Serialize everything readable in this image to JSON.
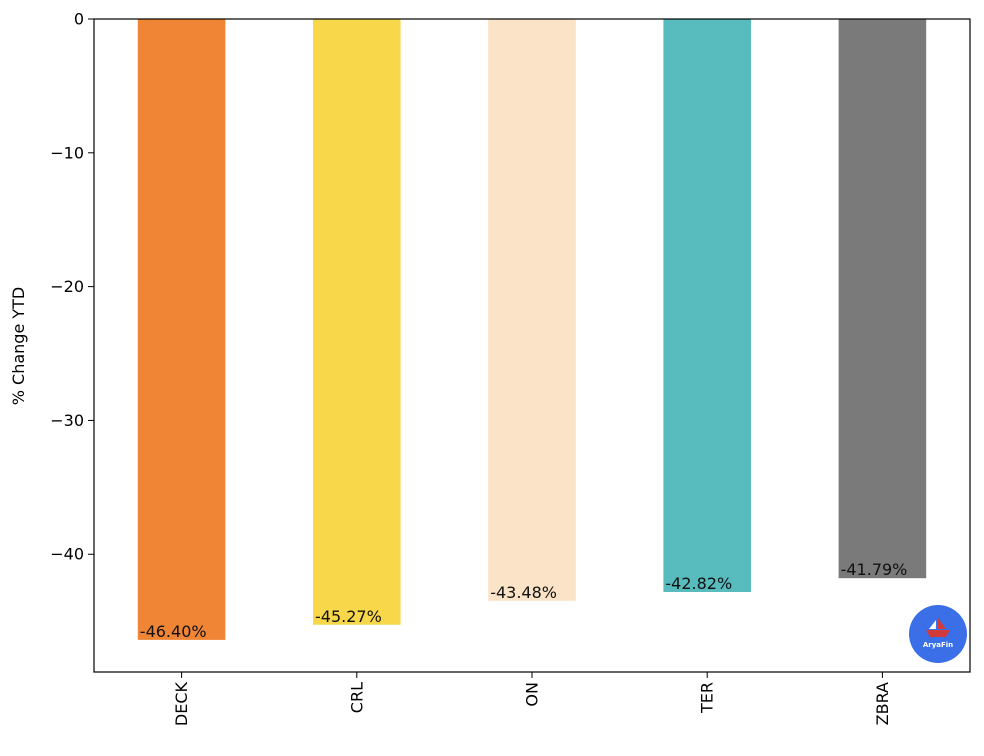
{
  "chart_data": {
    "type": "bar",
    "categories": [
      "DECK",
      "CRL",
      "ON",
      "TER",
      "ZBRA"
    ],
    "values": [
      -46.4,
      -45.27,
      -43.48,
      -42.82,
      -41.79
    ],
    "value_labels": [
      "-46.40%",
      "-45.27%",
      "-43.48%",
      "-42.82%",
      "-41.79%"
    ],
    "colors": [
      "#ef8535",
      "#f8d84a",
      "#fae3c6",
      "#58bbbd",
      "#7a7a7a"
    ],
    "title": "",
    "xlabel": "",
    "ylabel": "% Change YTD",
    "ylim": [
      -48.8,
      0
    ],
    "yticks": [
      0,
      -10,
      -20,
      -30,
      -40
    ],
    "ytick_labels": [
      "0",
      "−10",
      "−20",
      "−30",
      "−40"
    ],
    "grid": false,
    "legend": "none"
  },
  "watermark": {
    "text": "AryaFin",
    "color": "#3b6fe8",
    "icon": "boat-logo-icon"
  }
}
